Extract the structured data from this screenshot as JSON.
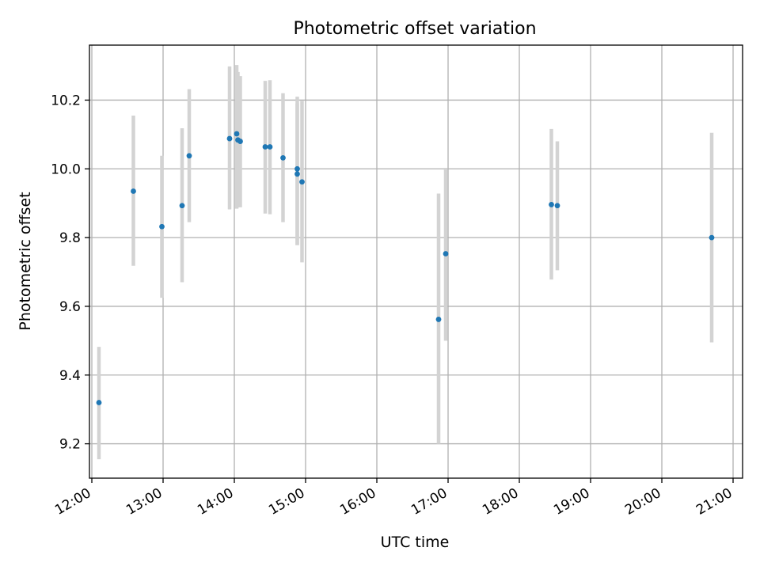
{
  "chart_data": {
    "type": "scatter",
    "title": "Photometric offset variation",
    "xlabel": "UTC time",
    "ylabel": "Photometric offset",
    "grid": true,
    "x_unit": "time",
    "xlim": [
      "11:58",
      "21:08"
    ],
    "ylim": [
      9.1,
      10.36
    ],
    "x_ticks": [
      "12:00",
      "13:00",
      "14:00",
      "15:00",
      "16:00",
      "17:00",
      "18:00",
      "19:00",
      "20:00",
      "21:00"
    ],
    "y_ticks": [
      "9.2",
      "9.4",
      "9.6",
      "9.8",
      "10.0",
      "10.2"
    ],
    "colors": {
      "marker": "#1f77b4",
      "error_bar": "#d3d3d3",
      "grid": "#b0b0b0"
    },
    "points": [
      {
        "x": "12:06",
        "y": 9.32,
        "err_low": 9.155,
        "err_high": 9.482
      },
      {
        "x": "12:35",
        "y": 9.935,
        "err_low": 9.718,
        "err_high": 10.155
      },
      {
        "x": "12:59",
        "y": 9.832,
        "err_low": 9.625,
        "err_high": 10.038
      },
      {
        "x": "13:16",
        "y": 9.893,
        "err_low": 9.67,
        "err_high": 10.118
      },
      {
        "x": "13:22",
        "y": 10.038,
        "err_low": 9.845,
        "err_high": 10.232
      },
      {
        "x": "13:56",
        "y": 10.088,
        "err_low": 9.882,
        "err_high": 10.298
      },
      {
        "x": "14:02",
        "y": 10.102,
        "err_low": 9.884,
        "err_high": 10.302
      },
      {
        "x": "14:03",
        "y": 10.084,
        "err_low": 9.888,
        "err_high": 10.282
      },
      {
        "x": "14:05",
        "y": 10.08,
        "err_low": 9.888,
        "err_high": 10.27
      },
      {
        "x": "14:26",
        "y": 10.064,
        "err_low": 9.87,
        "err_high": 10.256
      },
      {
        "x": "14:30",
        "y": 10.064,
        "err_low": 9.868,
        "err_high": 10.258
      },
      {
        "x": "14:41",
        "y": 10.032,
        "err_low": 9.845,
        "err_high": 10.22
      },
      {
        "x": "14:53",
        "y": 10.0,
        "err_low": 9.778,
        "err_high": 10.21
      },
      {
        "x": "14:53",
        "y": 9.985,
        "err_low": 9.778,
        "err_high": 10.19
      },
      {
        "x": "14:57",
        "y": 9.962,
        "err_low": 9.728,
        "err_high": 10.198
      },
      {
        "x": "16:52",
        "y": 9.562,
        "err_low": 9.2,
        "err_high": 9.928
      },
      {
        "x": "16:58",
        "y": 9.753,
        "err_low": 9.5,
        "err_high": 10.003
      },
      {
        "x": "18:27",
        "y": 9.896,
        "err_low": 9.678,
        "err_high": 10.116
      },
      {
        "x": "18:32",
        "y": 9.893,
        "err_low": 9.705,
        "err_high": 10.08
      },
      {
        "x": "20:42",
        "y": 9.8,
        "err_low": 9.495,
        "err_high": 10.105
      }
    ]
  }
}
